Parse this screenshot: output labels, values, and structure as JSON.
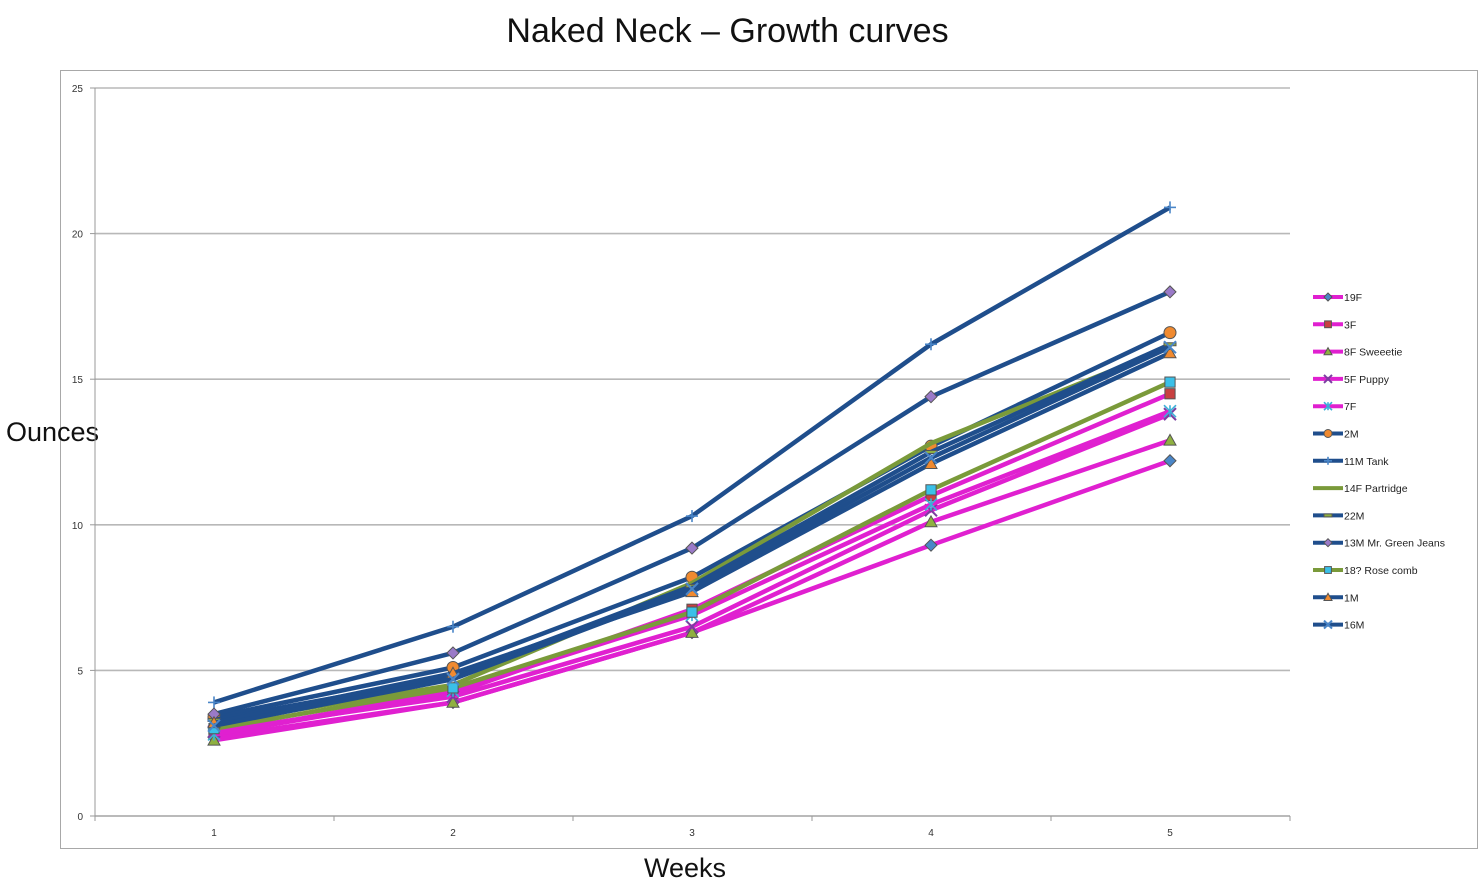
{
  "chart_data": {
    "type": "line",
    "title": "Naked Neck – Growth curves",
    "xlabel": "Weeks",
    "ylabel": "Ounces",
    "x": [
      1,
      2,
      3,
      4,
      5
    ],
    "ylim": [
      0,
      25
    ],
    "yticks": [
      0,
      5,
      10,
      15,
      20,
      25
    ],
    "grid": "horizontal",
    "legend_position": "right",
    "series": [
      {
        "name": "19F",
        "color": "#e020d0",
        "marker": "diamond",
        "marker_color": "#4a86c8",
        "values": [
          2.7,
          3.9,
          6.3,
          9.3,
          12.2
        ]
      },
      {
        "name": "3F",
        "color": "#e020d0",
        "marker": "square",
        "marker_color": "#c84040",
        "values": [
          2.8,
          4.2,
          7.1,
          11.0,
          14.5
        ]
      },
      {
        "name": "8F Sweeetie",
        "color": "#e020d0",
        "marker": "triangle",
        "marker_color": "#8fb040",
        "values": [
          2.6,
          3.9,
          6.3,
          10.1,
          12.9
        ]
      },
      {
        "name": "5F Puppy",
        "color": "#e020d0",
        "marker": "x",
        "marker_color": "#7a3fa0",
        "values": [
          2.9,
          4.1,
          6.5,
          10.5,
          13.8
        ]
      },
      {
        "name": "7F",
        "color": "#e020d0",
        "marker": "star",
        "marker_color": "#3ab0d8",
        "values": [
          2.8,
          4.3,
          6.9,
          10.7,
          13.9
        ]
      },
      {
        "name": "2M",
        "color": "#1f4e8c",
        "marker": "circle",
        "marker_color": "#f08a30",
        "values": [
          3.4,
          5.1,
          8.2,
          12.7,
          16.6
        ]
      },
      {
        "name": "11M Tank",
        "color": "#1f4e8c",
        "marker": "plus",
        "marker_color": "#4a86c8",
        "values": [
          3.9,
          6.5,
          10.3,
          16.2,
          20.9
        ]
      },
      {
        "name": "14F Partridge",
        "color": "#7a9a3a",
        "marker": "none",
        "marker_color": "#7a9a3a",
        "values": [
          3.2,
          4.5,
          8.0,
          12.8,
          16.1
        ]
      },
      {
        "name": "22M",
        "color": "#1f4e8c",
        "marker": "dash",
        "marker_color": "#8fb040",
        "values": [
          3.3,
          4.8,
          7.9,
          12.5,
          16.2
        ]
      },
      {
        "name": "13M Mr. Green Jeans",
        "color": "#1f4e8c",
        "marker": "diamond",
        "marker_color": "#9a7ac8",
        "values": [
          3.5,
          5.6,
          9.2,
          14.4,
          18.0
        ]
      },
      {
        "name": "18? Rose comb",
        "color": "#7a9a3a",
        "marker": "square",
        "marker_color": "#3ac0e8",
        "values": [
          3.0,
          4.4,
          7.0,
          11.2,
          14.9
        ]
      },
      {
        "name": "1M",
        "color": "#1f4e8c",
        "marker": "triangle",
        "marker_color": "#f08a30",
        "values": [
          3.2,
          4.9,
          7.7,
          12.1,
          15.9
        ]
      },
      {
        "name": "16M",
        "color": "#1f4e8c",
        "marker": "x",
        "marker_color": "#4a86c8",
        "values": [
          3.1,
          4.7,
          7.8,
          12.3,
          16.1
        ]
      }
    ]
  }
}
